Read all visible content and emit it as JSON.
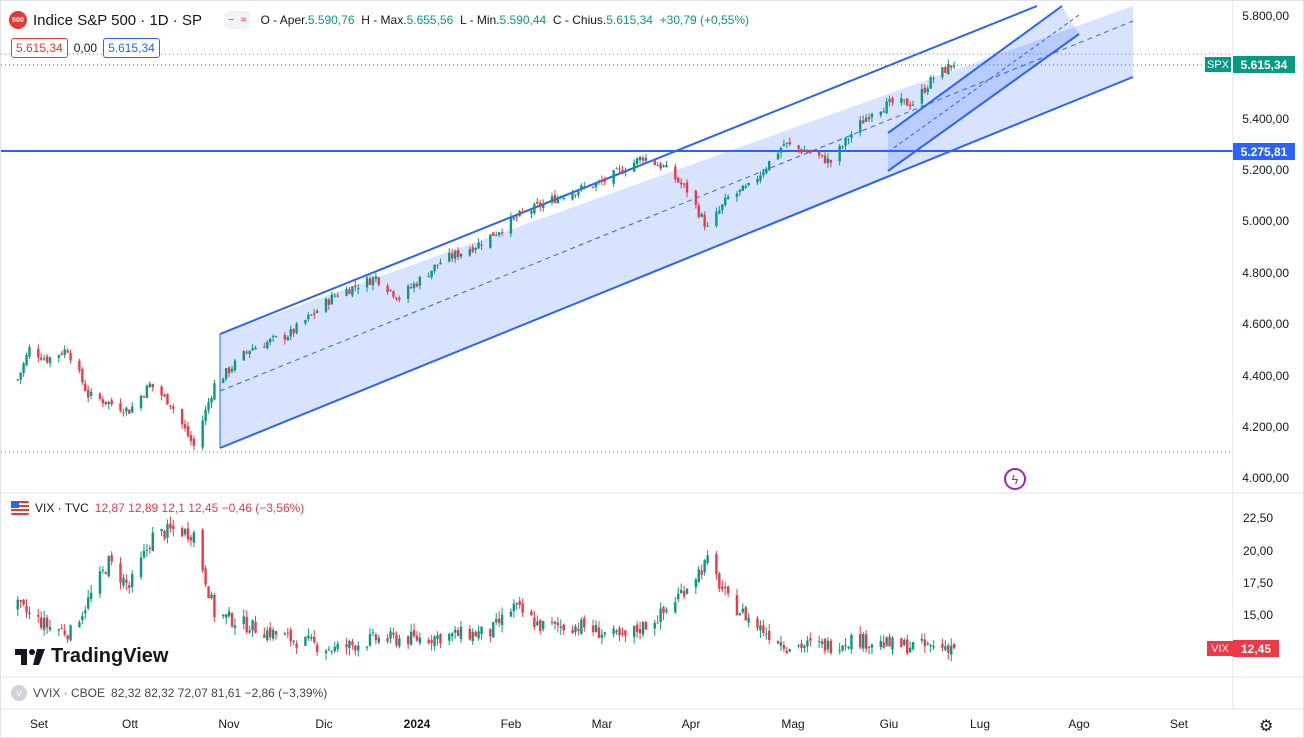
{
  "symbol": {
    "badge": "500",
    "title": "Indice S&P 500 · 1D · SP",
    "open_label": "O - Aper.",
    "open": "5.590,76",
    "high_label": "H - Max.",
    "high": "5.655,56",
    "low_label": "L - Min.",
    "low": "5.590,44",
    "close_label": "C - Chius.",
    "close": "5.615,34",
    "change": "+30,79 (+0,55%)",
    "bid": "5.615,34",
    "spread": "0,00",
    "ask": "5.615,34"
  },
  "price_axis": [
    "5.800,00",
    "5.600,00",
    "5.400,00",
    "5.200,00",
    "5.000,00",
    "4.800,00",
    "4.600,00",
    "4.400,00",
    "4.200,00",
    "4.000,00"
  ],
  "price_tags": {
    "spx_label": "SPX",
    "spx_value": "5.615,34",
    "line_value": "5.275,81"
  },
  "vix": {
    "legend": "VIX · TVC",
    "values": "12,87  12,89  12,1 12,45  −0,46 (−3,56%)",
    "axis": [
      "22,50",
      "20,00",
      "17,50",
      "15,00"
    ],
    "tag_label": "VIX",
    "tag_value": "12,45"
  },
  "vvix": {
    "icon": "V",
    "legend": "VVIX · CBOE",
    "values": "82,32  82,32  72,07  81,61  −2,86 (−3,39%)"
  },
  "time_axis": [
    "Set",
    "Ott",
    "Nov",
    "Dic",
    "2024",
    "Feb",
    "Mar",
    "Apr",
    "Mag",
    "Giu",
    "Lug",
    "Ago",
    "Set"
  ],
  "branding": "TradingView",
  "colors": {
    "up": "#089981",
    "down": "#f23645",
    "drawing": "#2962ff",
    "channel_fill": "#2962ff"
  },
  "chart_data": {
    "type": "candlestick",
    "series": [
      {
        "name": "Indice S&P 500",
        "points": [
          [
            "2023-08-28",
            4380
          ],
          [
            "2023-09-01",
            4500
          ],
          [
            "2023-09-07",
            4460
          ],
          [
            "2023-09-14",
            4500
          ],
          [
            "2023-09-21",
            4320
          ],
          [
            "2023-09-28",
            4290
          ],
          [
            "2023-10-05",
            4260
          ],
          [
            "2023-10-12",
            4360
          ],
          [
            "2023-10-19",
            4290
          ],
          [
            "2023-10-27",
            4120
          ],
          [
            "2023-11-03",
            4360
          ],
          [
            "2023-11-15",
            4500
          ],
          [
            "2023-11-29",
            4560
          ],
          [
            "2023-12-14",
            4710
          ],
          [
            "2023-12-28",
            4780
          ],
          [
            "2024-01-05",
            4700
          ],
          [
            "2024-01-19",
            4840
          ],
          [
            "2024-02-01",
            4910
          ],
          [
            "2024-02-15",
            5020
          ],
          [
            "2024-02-29",
            5100
          ],
          [
            "2024-03-14",
            5150
          ],
          [
            "2024-03-28",
            5250
          ],
          [
            "2024-04-04",
            5210
          ],
          [
            "2024-04-12",
            5120
          ],
          [
            "2024-04-19",
            4970
          ],
          [
            "2024-04-26",
            5090
          ],
          [
            "2024-05-03",
            5130
          ],
          [
            "2024-05-15",
            5300
          ],
          [
            "2024-05-23",
            5270
          ],
          [
            "2024-05-31",
            5230
          ],
          [
            "2024-06-07",
            5340
          ],
          [
            "2024-06-14",
            5430
          ],
          [
            "2024-06-21",
            5460
          ],
          [
            "2024-06-28",
            5460
          ],
          [
            "2024-07-05",
            5560
          ],
          [
            "2024-07-12",
            5615
          ]
        ]
      },
      {
        "name": "VIX",
        "points": [
          [
            "2023-08-28",
            15.5
          ],
          [
            "2023-09-07",
            14
          ],
          [
            "2023-09-15",
            13.5
          ],
          [
            "2023-09-21",
            16
          ],
          [
            "2023-09-28",
            19
          ],
          [
            "2023-10-05",
            17
          ],
          [
            "2023-10-13",
            21
          ],
          [
            "2023-10-20",
            21.5
          ],
          [
            "2023-10-27",
            21.2
          ],
          [
            "2023-11-03",
            15
          ],
          [
            "2023-11-15",
            14
          ],
          [
            "2023-11-29",
            13
          ],
          [
            "2023-12-14",
            12.2
          ],
          [
            "2023-12-28",
            13
          ],
          [
            "2024-01-10",
            13
          ],
          [
            "2024-01-24",
            13.3
          ],
          [
            "2024-02-05",
            13.5
          ],
          [
            "2024-02-13",
            15.5
          ],
          [
            "2024-02-22",
            14
          ],
          [
            "2024-03-07",
            14
          ],
          [
            "2024-03-21",
            13
          ],
          [
            "2024-04-04",
            15
          ],
          [
            "2024-04-15",
            18
          ],
          [
            "2024-04-19",
            19
          ],
          [
            "2024-04-26",
            16
          ],
          [
            "2024-05-06",
            14
          ],
          [
            "2024-05-16",
            12.5
          ],
          [
            "2024-05-31",
            12.5
          ],
          [
            "2024-06-07",
            13
          ],
          [
            "2024-06-21",
            12.5
          ],
          [
            "2024-07-05",
            12.4
          ],
          [
            "2024-07-12",
            12.45
          ]
        ]
      }
    ],
    "drawings": [
      "regression trend channel Nov 2023 - Jul 2024",
      "steeper parallel channel Jun - Jul 2024",
      "horizontal line 5.275,81"
    ],
    "xlabels": [
      "Set",
      "Ott",
      "Nov",
      "Dic",
      "2024",
      "Feb",
      "Mar",
      "Apr",
      "Mag",
      "Giu",
      "Lug",
      "Ago",
      "Set"
    ],
    "ylim_price": [
      4000,
      5800
    ],
    "ylim_vix": [
      12,
      22.5
    ],
    "grid": false
  }
}
